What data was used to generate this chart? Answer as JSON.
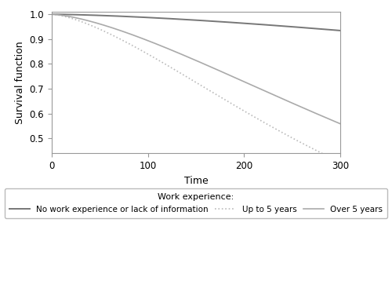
{
  "title": "",
  "xlabel": "Time",
  "ylabel": "Survival function",
  "xlim": [
    0,
    300
  ],
  "ylim": [
    0.44,
    1.01
  ],
  "yticks": [
    0.5,
    0.6,
    0.7,
    0.8,
    0.9,
    1.0
  ],
  "xticks": [
    0,
    100,
    200,
    300
  ],
  "t_max": 300,
  "curves": {
    "no_exp": {
      "label": "No work experience or lack of information",
      "color": "#777777",
      "linestyle": "solid",
      "linewidth": 1.4,
      "scale": 1800,
      "shape": 1.5
    },
    "up_to_5": {
      "label": "Up to 5 years",
      "color": "#bbbbbb",
      "linestyle": "dotted",
      "linewidth": 1.2,
      "scale": 320,
      "shape": 1.5
    },
    "over_5": {
      "label": "Over 5 years",
      "color": "#aaaaaa",
      "linestyle": "solid",
      "linewidth": 1.2,
      "scale": 430,
      "shape": 1.5
    }
  },
  "legend_title": "Work experience:",
  "legend_title_fontsize": 8,
  "legend_fontsize": 7.5,
  "axis_fontsize": 9,
  "tick_fontsize": 8.5,
  "background_color": "#ffffff",
  "figure_background": "#ffffff"
}
